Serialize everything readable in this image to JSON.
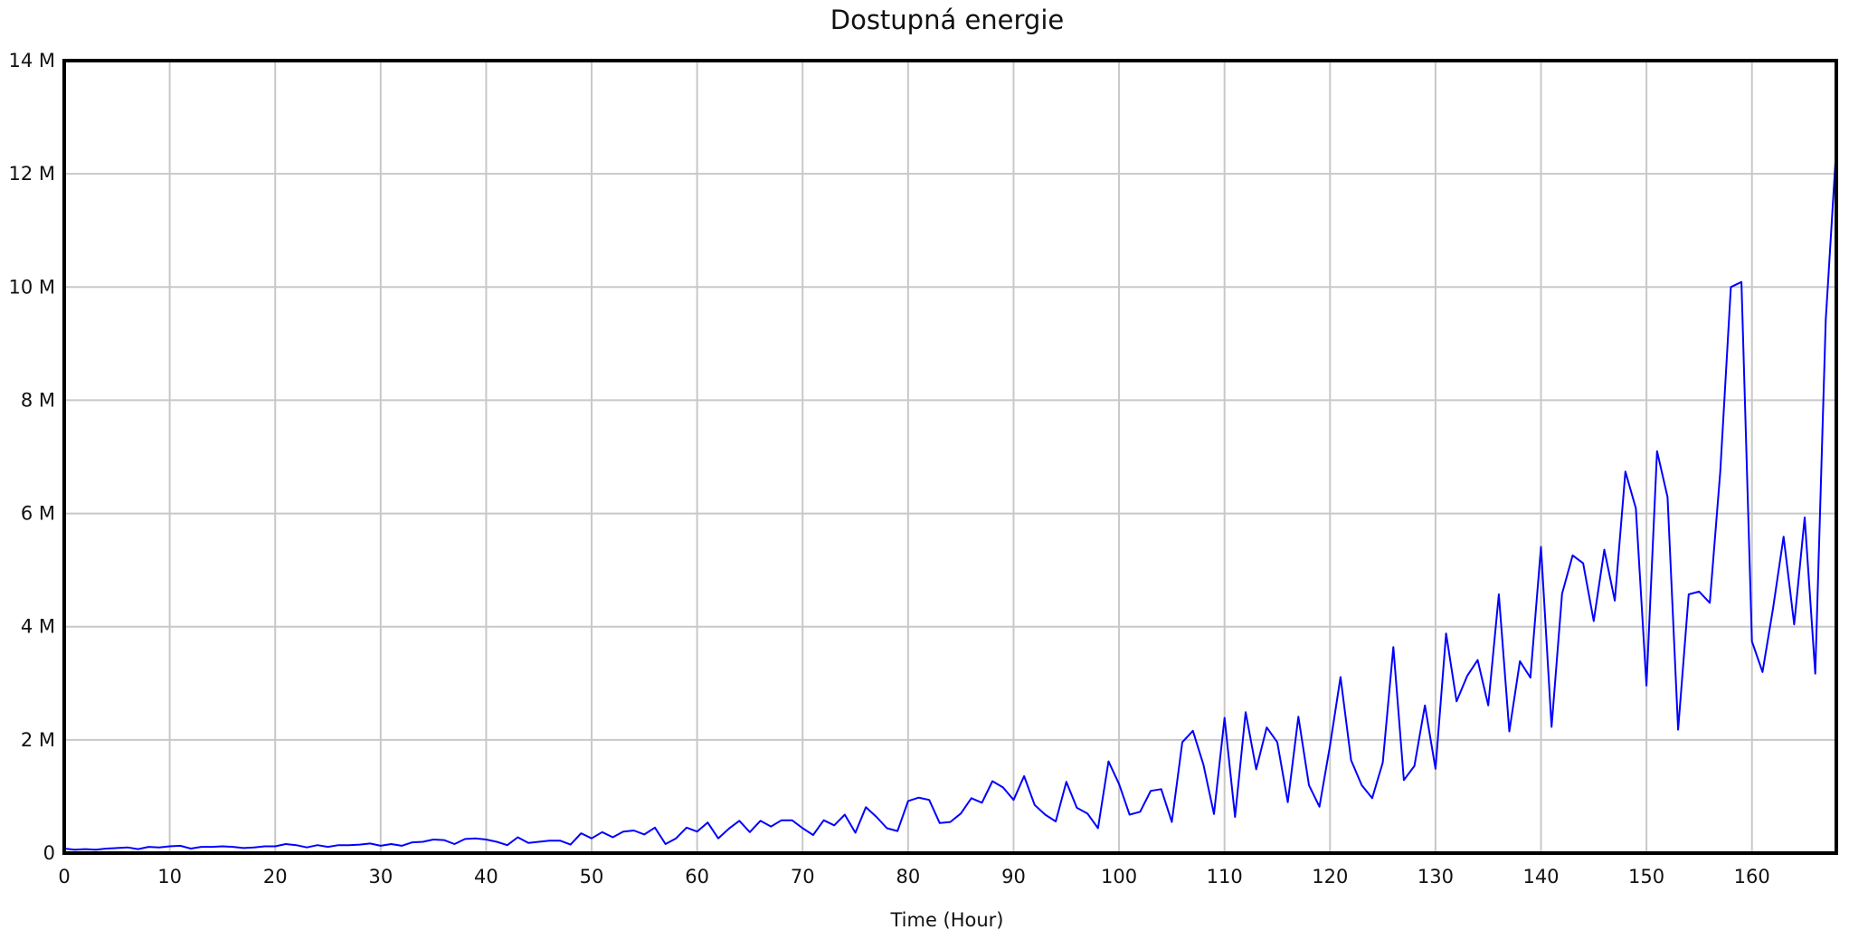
{
  "chart_data": {
    "type": "line",
    "title": "Dostupná energie",
    "xlabel": "Time (Hour)",
    "ylabel": "",
    "xlim": [
      0,
      168
    ],
    "ylim": [
      0,
      14000000
    ],
    "x_ticks": [
      0,
      10,
      20,
      30,
      40,
      50,
      60,
      70,
      80,
      90,
      100,
      110,
      120,
      130,
      140,
      150,
      160
    ],
    "x_tick_labels": [
      "0",
      "10",
      "20",
      "30",
      "40",
      "50",
      "60",
      "70",
      "80",
      "90",
      "100",
      "110",
      "120",
      "130",
      "140",
      "150",
      "160"
    ],
    "y_ticks": [
      0,
      2000000,
      4000000,
      6000000,
      8000000,
      10000000,
      12000000,
      14000000
    ],
    "y_tick_labels": [
      "0",
      "2 M",
      "4 M",
      "6 M",
      "8 M",
      "10 M",
      "12 M",
      "14 M"
    ],
    "grid": true,
    "colors": {
      "line": "#0000ff",
      "grid": "#c8c8c8",
      "frame": "#000000"
    },
    "series": [
      {
        "x": [
          0,
          1,
          2,
          3,
          4,
          5,
          6,
          7,
          8,
          9,
          10,
          11,
          12,
          13,
          14,
          15,
          16,
          17,
          18,
          19,
          20,
          21,
          22,
          23,
          24,
          25,
          26,
          27,
          28,
          29,
          30,
          31,
          32,
          33,
          34,
          35,
          36,
          37,
          38,
          39,
          40,
          41,
          42,
          43,
          44,
          45,
          46,
          47,
          48,
          49,
          50,
          51,
          52,
          53,
          54,
          55,
          56,
          57,
          58,
          59,
          60,
          61,
          62,
          63,
          64,
          65,
          66,
          67,
          68,
          69,
          70,
          71,
          72,
          73,
          74,
          75,
          76,
          77,
          78,
          79,
          80,
          81,
          82,
          83,
          84,
          85,
          86,
          87,
          88,
          89,
          90,
          91,
          92,
          93,
          94,
          95,
          96,
          97,
          98,
          99,
          100,
          101,
          102,
          103,
          104,
          105,
          106,
          107,
          108,
          109,
          110,
          111,
          112,
          113,
          114,
          115,
          116,
          117,
          118,
          119,
          120,
          121,
          122,
          123,
          124,
          125,
          126,
          127,
          128,
          129,
          130,
          131,
          132,
          133,
          134,
          135,
          136,
          137,
          138,
          139,
          140,
          141,
          142,
          143,
          144,
          145,
          146,
          147,
          148,
          149,
          150,
          151,
          152,
          153,
          154,
          155,
          156,
          157,
          158,
          159,
          160,
          161,
          162,
          163,
          164,
          165,
          166,
          167,
          168
        ],
        "values": [
          80000,
          60000,
          70000,
          60000,
          80000,
          90000,
          100000,
          70000,
          110000,
          100000,
          120000,
          130000,
          80000,
          110000,
          110000,
          120000,
          110000,
          90000,
          100000,
          120000,
          120000,
          160000,
          140000,
          100000,
          140000,
          110000,
          140000,
          140000,
          150000,
          170000,
          130000,
          160000,
          130000,
          190000,
          200000,
          240000,
          230000,
          160000,
          250000,
          260000,
          240000,
          200000,
          140000,
          280000,
          180000,
          200000,
          220000,
          220000,
          150000,
          350000,
          260000,
          370000,
          280000,
          380000,
          400000,
          330000,
          450000,
          160000,
          260000,
          450000,
          380000,
          540000,
          260000,
          430000,
          570000,
          370000,
          570000,
          470000,
          580000,
          580000,
          440000,
          320000,
          580000,
          490000,
          680000,
          360000,
          810000,
          640000,
          440000,
          390000,
          920000,
          980000,
          940000,
          530000,
          550000,
          700000,
          970000,
          890000,
          1270000,
          1160000,
          940000,
          1360000,
          850000,
          680000,
          560000,
          1260000,
          800000,
          700000,
          440000,
          1620000,
          1220000,
          680000,
          730000,
          1100000,
          1130000,
          550000,
          1960000,
          2160000,
          1560000,
          690000,
          2390000,
          640000,
          2490000,
          1480000,
          2220000,
          1960000,
          900000,
          2410000,
          1200000,
          820000,
          1900000,
          3110000,
          1640000,
          1200000,
          970000,
          1600000,
          3640000,
          1290000,
          1540000,
          2610000,
          1490000,
          3880000,
          2680000,
          3130000,
          3410000,
          2610000,
          4570000,
          2150000,
          3390000,
          3100000,
          5410000,
          2230000,
          4580000,
          5260000,
          5120000,
          4100000,
          5360000,
          4460000,
          6740000,
          6090000,
          2960000,
          7100000,
          6290000,
          2180000,
          4570000,
          4620000,
          4420000,
          6740000,
          10000000,
          10090000,
          3740000,
          3200000,
          4320000,
          5590000,
          4040000,
          5930000,
          3170000,
          9420000,
          12470000
        ]
      }
    ]
  }
}
